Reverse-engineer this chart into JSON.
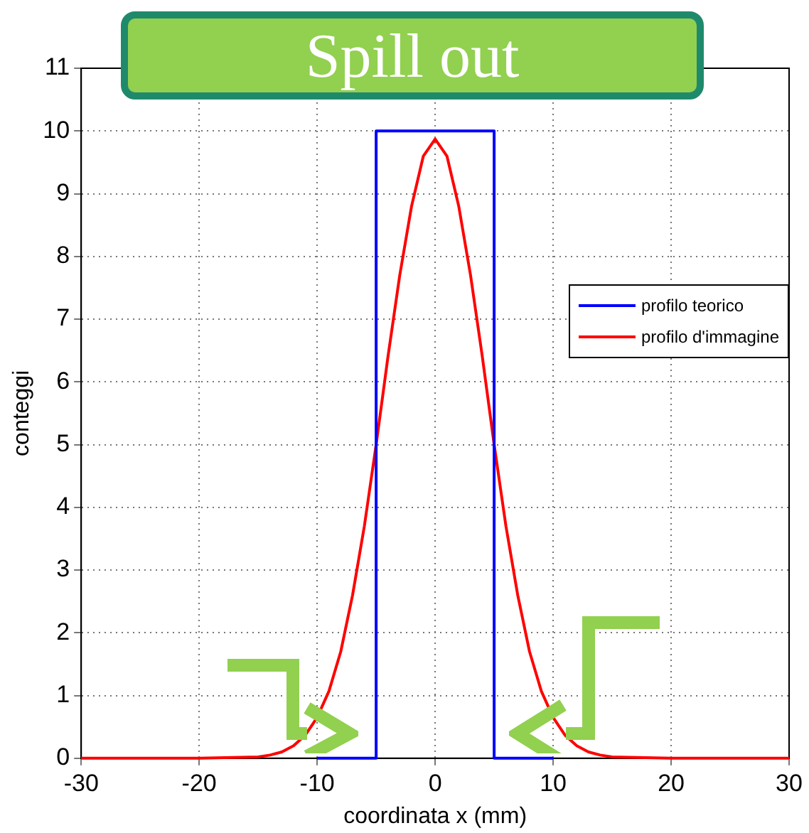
{
  "chart_data": {
    "type": "line",
    "title": "Spill out",
    "xlabel": "coordinata x (mm)",
    "ylabel": "conteggi",
    "xlim": [
      -30,
      30
    ],
    "xticks": [
      -30,
      -20,
      -10,
      0,
      10,
      20,
      30
    ],
    "ylim": [
      0,
      11
    ],
    "yticks": [
      0,
      1,
      2,
      3,
      4,
      5,
      6,
      7,
      8,
      9,
      10,
      11
    ],
    "grid": true,
    "legend": "right",
    "marker": "none",
    "line_style": "solid",
    "series": [
      {
        "name": "profilo teorico",
        "color": "#0000ff",
        "x": [
          -10,
          -5,
          -5,
          5,
          5,
          10
        ],
        "values": [
          0,
          0,
          10,
          10,
          0,
          0
        ]
      },
      {
        "name": "profilo d'immagine",
        "color": "#ff0000",
        "x": [
          -30,
          -20,
          -15,
          -14,
          -13,
          -12,
          -11,
          -10,
          -9,
          -8,
          -7,
          -6,
          -5,
          -4,
          -3,
          -2,
          -1,
          0,
          1,
          2,
          3,
          4,
          5,
          6,
          7,
          8,
          9,
          10,
          11,
          12,
          13,
          14,
          15,
          20,
          30
        ],
        "values": [
          0,
          0,
          0.02,
          0.05,
          0.1,
          0.2,
          0.37,
          0.65,
          1.07,
          1.7,
          2.6,
          3.7,
          5.0,
          6.4,
          7.7,
          8.8,
          9.6,
          9.87,
          9.6,
          8.8,
          7.7,
          6.4,
          5.0,
          3.7,
          2.6,
          1.7,
          1.07,
          0.65,
          0.37,
          0.2,
          0.1,
          0.05,
          0.02,
          0,
          0
        ]
      }
    ]
  }
}
